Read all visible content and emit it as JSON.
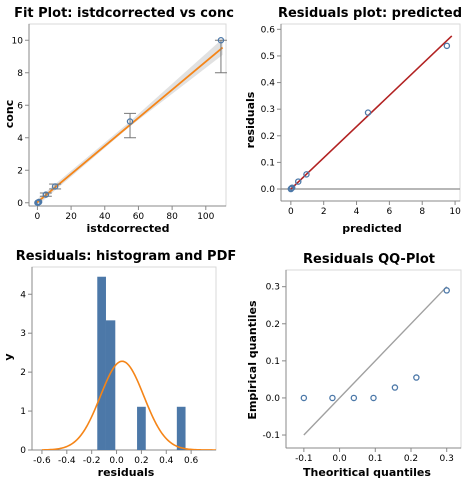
{
  "colors": {
    "point": "#4c78a8",
    "fit_line": "#f58518",
    "band": "#d9d9d9",
    "residual_line": "#b22222",
    "zero_line": "#8c8c8c",
    "bar": "#4c78a8",
    "pdf": "#f58518",
    "qq_line": "#a0a0a0"
  },
  "chart_data": [
    {
      "id": "fit",
      "type": "scatter",
      "title": "Fit Plot: istdcorrected vs conc",
      "xlabel": "istdcorrected",
      "ylabel": "conc",
      "xlim": [
        -5,
        112
      ],
      "ylim": [
        -0.2,
        11
      ],
      "xticks": [
        0,
        20,
        40,
        60,
        80,
        100
      ],
      "yticks": [
        0,
        2,
        4,
        6,
        8,
        10
      ],
      "grid": false,
      "points": [
        {
          "x": 0.0,
          "y": 0.0
        },
        {
          "x": 0.5,
          "y": 0.02
        },
        {
          "x": 1.0,
          "y": 0.05
        },
        {
          "x": 5.0,
          "y": 0.5
        },
        {
          "x": 10.5,
          "y": 1.0
        },
        {
          "x": 55.0,
          "y": 5.0
        },
        {
          "x": 109.0,
          "y": 10.0
        }
      ],
      "error_bars": [
        {
          "x": 5.0,
          "y_low": 0.4,
          "y_high": 0.6
        },
        {
          "x": 10.5,
          "y_low": 0.85,
          "y_high": 1.15
        },
        {
          "x": 55.0,
          "y_low": 4.0,
          "y_high": 5.5
        },
        {
          "x": 109.0,
          "y_low": 8.0,
          "y_high": 10.0
        }
      ],
      "fit_line": {
        "x": [
          -1,
          110
        ],
        "y": [
          -0.05,
          9.55
        ]
      },
      "band": {
        "x": [
          -1,
          55,
          110
        ],
        "lower": [
          -0.25,
          4.7,
          9.1
        ],
        "upper": [
          0.15,
          5.0,
          10.1
        ]
      }
    },
    {
      "id": "resid",
      "type": "scatter",
      "title": "Residuals plot: predicted",
      "xlabel": "predicted",
      "ylabel": "residuals",
      "xlim": [
        -0.6,
        10.3
      ],
      "ylim": [
        -0.045,
        0.62
      ],
      "xticks": [
        0,
        2,
        4,
        6,
        8,
        10
      ],
      "yticks": [
        0.0,
        0.1,
        0.2,
        0.3,
        0.4,
        0.5,
        0.6
      ],
      "ytick_labels": [
        "0.0",
        "0.1",
        "0.2",
        "0.3",
        "0.4",
        "0.5",
        "0.6"
      ],
      "grid": false,
      "points": [
        {
          "x": 0.0,
          "y": 0.0
        },
        {
          "x": 0.02,
          "y": 0.002
        },
        {
          "x": 0.08,
          "y": 0.005
        },
        {
          "x": 0.45,
          "y": 0.028
        },
        {
          "x": 0.95,
          "y": 0.055
        },
        {
          "x": 4.7,
          "y": 0.287
        },
        {
          "x": 9.5,
          "y": 0.538
        }
      ],
      "fit_line": {
        "x": [
          0,
          9.8
        ],
        "y": [
          0.0,
          0.575
        ]
      },
      "zero_line": 0
    },
    {
      "id": "hist",
      "type": "bar",
      "title": "Residuals: histogram and PDF",
      "xlabel": "residuals",
      "ylabel": "y",
      "xlim": [
        -0.68,
        0.8
      ],
      "ylim": [
        0,
        4.7
      ],
      "xticks": [
        -0.6,
        -0.4,
        -0.2,
        0.0,
        0.2,
        0.4,
        0.6
      ],
      "xtick_labels": [
        "-0.6",
        "-0.4",
        "-0.2",
        "0.0",
        "0.2",
        "0.4",
        "0.6"
      ],
      "yticks": [
        0,
        1,
        2,
        3,
        4
      ],
      "grid": false,
      "bins": [
        {
          "x0": -0.155,
          "x1": -0.085,
          "value": 4.45
        },
        {
          "x0": -0.085,
          "x1": -0.01,
          "value": 3.33
        },
        {
          "x0": 0.165,
          "x1": 0.235,
          "value": 1.11
        },
        {
          "x0": 0.485,
          "x1": 0.555,
          "value": 1.11
        }
      ],
      "pdf": {
        "mean": 0.045,
        "sd": 0.175
      }
    },
    {
      "id": "qq",
      "type": "scatter",
      "title": "Residuals QQ-Plot",
      "xlabel": "Theoritical quantiles",
      "ylabel": "Empirical quantiles",
      "xlim": [
        -0.15,
        0.34
      ],
      "ylim": [
        -0.135,
        0.345
      ],
      "xticks": [
        -0.1,
        0.0,
        0.1,
        0.2,
        0.3
      ],
      "xtick_labels": [
        "-0.1",
        "0.0",
        "0.1",
        "0.2",
        "0.3"
      ],
      "yticks": [
        -0.1,
        0.0,
        0.1,
        0.2,
        0.3
      ],
      "ytick_labels": [
        "-0.1",
        "0.0",
        "0.1",
        "0.2",
        "0.3"
      ],
      "grid": false,
      "points": [
        {
          "x": -0.1,
          "y": 0.0
        },
        {
          "x": -0.02,
          "y": 0.0
        },
        {
          "x": 0.04,
          "y": 0.0
        },
        {
          "x": 0.095,
          "y": 0.0
        },
        {
          "x": 0.155,
          "y": 0.028
        },
        {
          "x": 0.215,
          "y": 0.055
        },
        {
          "x": 0.3,
          "y": 0.29
        }
      ],
      "ref_line": {
        "x": [
          -0.1,
          0.3
        ],
        "y": [
          -0.1,
          0.3
        ]
      }
    }
  ]
}
